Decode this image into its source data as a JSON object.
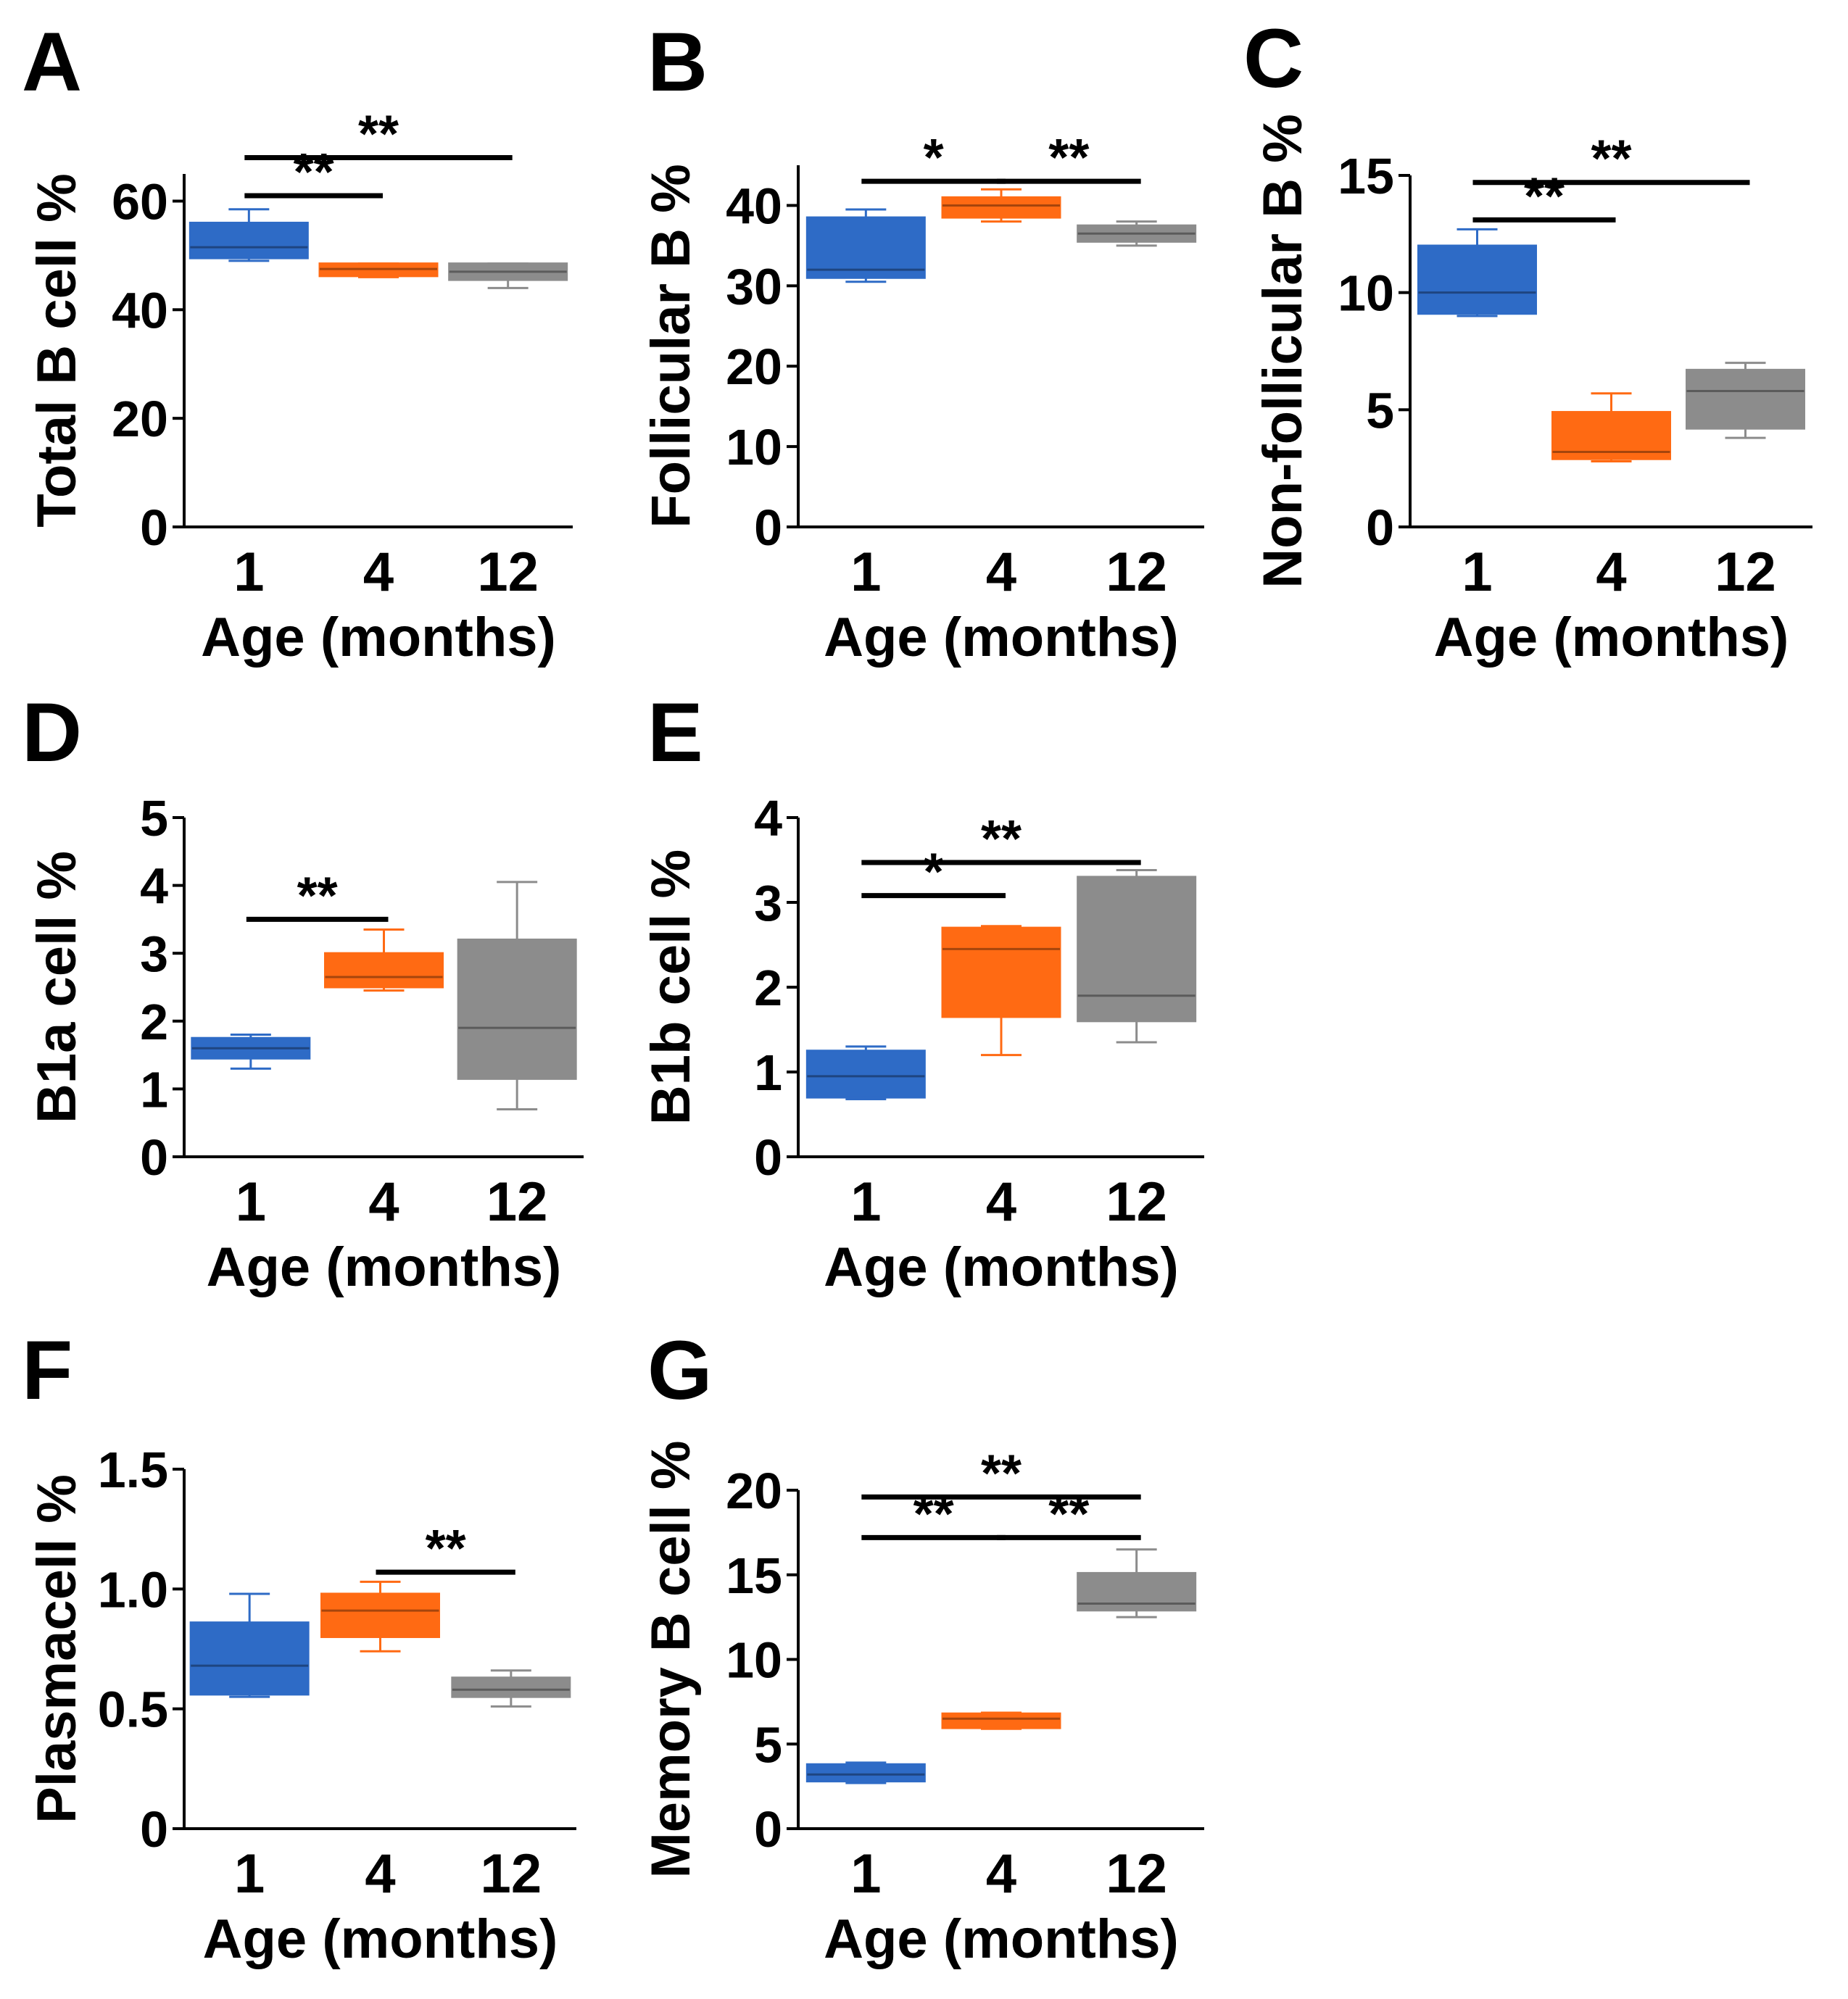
{
  "figure": {
    "colors": {
      "group_1": "#2E6BC6",
      "group_4": "#FF6A13",
      "group_12": "#8C8C8C",
      "axis": "#000000"
    }
  },
  "chart_data": [
    {
      "id": "A",
      "panel": "A",
      "type": "box",
      "ylabel": "Total B cell %",
      "xlabel": "Age (months)",
      "ylim": [
        0,
        65
      ],
      "yticks": [
        0,
        20,
        40,
        60
      ],
      "categories": [
        "1",
        "4",
        "12"
      ],
      "boxes": [
        {
          "group": "1",
          "min": 49.0,
          "q1": 49.5,
          "median": 51.5,
          "q3": 56.0,
          "max": 58.5,
          "color": "#2E6BC6"
        },
        {
          "group": "4",
          "min": 46.0,
          "q1": 46.2,
          "median": 47.5,
          "q3": 48.5,
          "max": 48.5,
          "color": "#FF6A13"
        },
        {
          "group": "12",
          "min": 44.0,
          "q1": 45.5,
          "median": 47.0,
          "q3": 48.5,
          "max": 48.5,
          "color": "#8C8C8C"
        }
      ],
      "significance": [
        {
          "from": "1",
          "to": "4",
          "label": "**",
          "level": 61.0
        },
        {
          "from": "1",
          "to": "12",
          "label": "**",
          "level": 68.0
        }
      ]
    },
    {
      "id": "B",
      "panel": "B",
      "type": "box",
      "ylabel": "Follicular B %",
      "xlabel": "Age (months)",
      "ylim": [
        0,
        45
      ],
      "yticks": [
        0,
        10,
        20,
        30,
        40
      ],
      "categories": [
        "1",
        "4",
        "12"
      ],
      "boxes": [
        {
          "group": "1",
          "min": 30.5,
          "q1": 31.0,
          "median": 32.0,
          "q3": 38.5,
          "max": 39.5,
          "color": "#2E6BC6"
        },
        {
          "group": "4",
          "min": 38.0,
          "q1": 38.5,
          "median": 40.0,
          "q3": 41.0,
          "max": 42.0,
          "color": "#FF6A13"
        },
        {
          "group": "12",
          "min": 35.0,
          "q1": 35.5,
          "median": 36.5,
          "q3": 37.5,
          "max": 38.0,
          "color": "#8C8C8C"
        }
      ],
      "significance": [
        {
          "from": "1",
          "to": "4",
          "label": "*",
          "level": 43.0
        },
        {
          "from": "4",
          "to": "12",
          "label": "**",
          "level": 43.0
        }
      ]
    },
    {
      "id": "C",
      "panel": "C",
      "type": "box",
      "ylabel": "Non-follicular B %",
      "xlabel": "Age (months)",
      "ylim": [
        0,
        15
      ],
      "yticks": [
        0,
        5,
        10,
        15
      ],
      "categories": [
        "1",
        "4",
        "12"
      ],
      "boxes": [
        {
          "group": "1",
          "min": 9.0,
          "q1": 9.1,
          "median": 10.0,
          "q3": 12.0,
          "max": 12.7,
          "color": "#2E6BC6"
        },
        {
          "group": "4",
          "min": 2.8,
          "q1": 2.9,
          "median": 3.2,
          "q3": 4.9,
          "max": 5.7,
          "color": "#FF6A13"
        },
        {
          "group": "12",
          "min": 3.8,
          "q1": 4.2,
          "median": 5.8,
          "q3": 6.7,
          "max": 7.0,
          "color": "#8C8C8C"
        }
      ],
      "significance": [
        {
          "from": "1",
          "to": "4",
          "label": "**",
          "level": 13.1
        },
        {
          "from": "1",
          "to": "12",
          "label": "**",
          "level": 14.7
        }
      ]
    },
    {
      "id": "D",
      "panel": "D",
      "type": "box",
      "ylabel": "B1a cell %",
      "xlabel": "Age (months)",
      "ylim": [
        0,
        5
      ],
      "yticks": [
        0,
        1,
        2,
        3,
        4,
        5
      ],
      "categories": [
        "1",
        "4",
        "12"
      ],
      "boxes": [
        {
          "group": "1",
          "min": 1.3,
          "q1": 1.45,
          "median": 1.6,
          "q3": 1.75,
          "max": 1.8,
          "color": "#2E6BC6"
        },
        {
          "group": "4",
          "min": 2.45,
          "q1": 2.5,
          "median": 2.65,
          "q3": 3.0,
          "max": 3.35,
          "color": "#FF6A13"
        },
        {
          "group": "12",
          "min": 0.7,
          "q1": 1.15,
          "median": 1.9,
          "q3": 3.2,
          "max": 4.05,
          "color": "#8C8C8C"
        }
      ],
      "significance": [
        {
          "from": "1",
          "to": "4",
          "label": "**",
          "level": 3.5
        }
      ]
    },
    {
      "id": "E",
      "panel": "E",
      "type": "box",
      "ylabel": "B1b cell %",
      "xlabel": "Age (months)",
      "ylim": [
        0,
        4
      ],
      "yticks": [
        0,
        1,
        2,
        3,
        4
      ],
      "categories": [
        "1",
        "4",
        "12"
      ],
      "boxes": [
        {
          "group": "1",
          "min": 0.68,
          "q1": 0.7,
          "median": 0.95,
          "q3": 1.25,
          "max": 1.3,
          "color": "#2E6BC6"
        },
        {
          "group": "4",
          "min": 1.2,
          "q1": 1.65,
          "median": 2.45,
          "q3": 2.7,
          "max": 2.72,
          "color": "#FF6A13"
        },
        {
          "group": "12",
          "min": 1.35,
          "q1": 1.6,
          "median": 1.9,
          "q3": 3.3,
          "max": 3.38,
          "color": "#8C8C8C"
        }
      ],
      "significance": [
        {
          "from": "1",
          "to": "4",
          "label": "*",
          "level": 3.08
        },
        {
          "from": "1",
          "to": "12",
          "label": "**",
          "level": 3.47
        }
      ]
    },
    {
      "id": "F",
      "panel": "F",
      "type": "box",
      "ylabel": "Plasmacell %",
      "xlabel": "Age (months)",
      "ylim": [
        0,
        1.5
      ],
      "yticks": [
        0,
        0.5,
        1.0,
        1.5
      ],
      "ytick_labels": [
        "0",
        "0.5",
        "1.0",
        "1.5"
      ],
      "categories": [
        "1",
        "4",
        "12"
      ],
      "boxes": [
        {
          "group": "1",
          "min": 0.55,
          "q1": 0.56,
          "median": 0.68,
          "q3": 0.86,
          "max": 0.98,
          "color": "#2E6BC6"
        },
        {
          "group": "4",
          "min": 0.74,
          "q1": 0.8,
          "median": 0.91,
          "q3": 0.98,
          "max": 1.03,
          "color": "#FF6A13"
        },
        {
          "group": "12",
          "min": 0.51,
          "q1": 0.55,
          "median": 0.58,
          "q3": 0.63,
          "max": 0.66,
          "color": "#8C8C8C"
        }
      ],
      "significance": [
        {
          "from": "4",
          "to": "12",
          "label": "**",
          "level": 1.07
        }
      ]
    },
    {
      "id": "G",
      "panel": "G",
      "type": "box",
      "ylabel": "Memory B cell %",
      "xlabel": "Age (months)",
      "ylim": [
        0,
        20
      ],
      "yticks": [
        0,
        5,
        10,
        15,
        20
      ],
      "categories": [
        "1",
        "4",
        "12"
      ],
      "boxes": [
        {
          "group": "1",
          "min": 2.7,
          "q1": 2.8,
          "median": 3.2,
          "q3": 3.8,
          "max": 3.9,
          "color": "#2E6BC6"
        },
        {
          "group": "4",
          "min": 5.9,
          "q1": 5.95,
          "median": 6.5,
          "q3": 6.8,
          "max": 6.85,
          "color": "#FF6A13"
        },
        {
          "group": "12",
          "min": 12.5,
          "q1": 12.9,
          "median": 13.3,
          "q3": 15.1,
          "max": 16.5,
          "color": "#8C8C8C"
        }
      ],
      "significance": [
        {
          "from": "1",
          "to": "4",
          "label": "**",
          "level": 17.2
        },
        {
          "from": "4",
          "to": "12",
          "label": "**",
          "level": 17.2
        },
        {
          "from": "1",
          "to": "12",
          "label": "**",
          "level": 19.6
        }
      ]
    }
  ]
}
